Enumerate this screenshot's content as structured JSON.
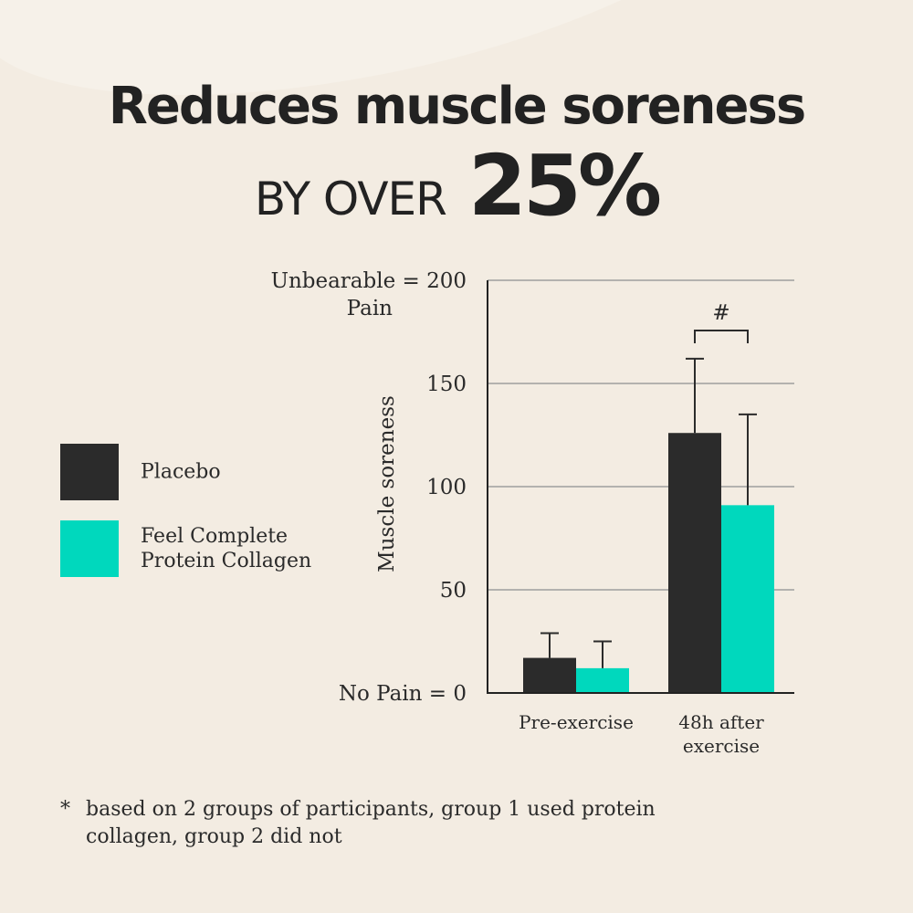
{
  "headline": "Reduces muscle soreness",
  "subline": {
    "prefix": "BY OVER",
    "number": "25%"
  },
  "footnote": {
    "marker": "*",
    "text": "based on 2 groups of participants, group 1 used protein collagen, group 2 did not"
  },
  "colors": {
    "placebo": "#2b2b2b",
    "collagen": "#00d8bd",
    "background": "#f3ece2",
    "grid": "#9e9e9e"
  },
  "chart_data": {
    "type": "bar",
    "categories": [
      "Pre-exercise",
      "48h after exercise"
    ],
    "series": [
      {
        "name": "Placebo",
        "values": [
          17,
          126
        ],
        "error_upper": [
          29,
          162
        ]
      },
      {
        "name": "Feel Complete Protein Collagen",
        "values": [
          12,
          91
        ],
        "error_upper": [
          25,
          135
        ]
      }
    ],
    "ylabel": "Muscle soreness",
    "ylim": [
      0,
      200
    ],
    "yticks": [
      {
        "value": 0,
        "label": "No Pain = 0"
      },
      {
        "value": 50,
        "label": "50"
      },
      {
        "value": 100,
        "label": "100"
      },
      {
        "value": 150,
        "label": "150"
      },
      {
        "value": 200,
        "label": "Unbearable = 200 Pain"
      }
    ],
    "grid": true,
    "legend_position": "left",
    "annotations": [
      {
        "text": "#",
        "category": "48h after exercise"
      }
    ]
  }
}
